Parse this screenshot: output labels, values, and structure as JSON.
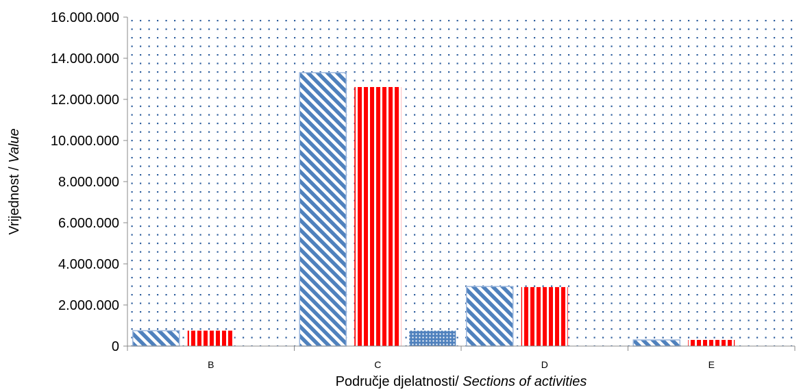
{
  "chart_data": {
    "type": "bar",
    "categories": [
      "B",
      "C",
      "D",
      "E"
    ],
    "series": [
      {
        "values": [
          750000,
          13300000,
          2900000,
          300000
        ],
        "color": "#4F81BD",
        "pattern": "diagonal-stripes"
      },
      {
        "values": [
          750000,
          12600000,
          2870000,
          300000
        ],
        "color": "#FF0000",
        "pattern": "vertical-stripes"
      },
      {
        "values": [
          0,
          750000,
          0,
          0
        ],
        "color": "#4F81BD",
        "pattern": "dots"
      }
    ],
    "ylim": [
      0,
      16000000
    ],
    "yticks": [
      0,
      2000000,
      4000000,
      6000000,
      8000000,
      10000000,
      12000000,
      14000000,
      16000000
    ],
    "ytick_labels": [
      "0",
      "2.000.000",
      "4.000.000",
      "6.000.000",
      "8.000.000",
      "10.000.000",
      "12.000.000",
      "14.000.000",
      "16.000.000"
    ],
    "ylabel": {
      "main": "Vrijednost / ",
      "italic": "Value"
    },
    "xlabel": {
      "main": "Područje djelatnosti/ ",
      "italic": "Sections of activities"
    },
    "plot_background": "dotted-blue",
    "grid": false,
    "legend": "none"
  }
}
